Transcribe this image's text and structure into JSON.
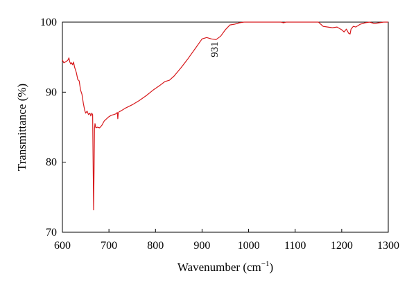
{
  "chart_data": {
    "type": "line",
    "xlabel": "Wavenumber (cm",
    "xlabel_sup": "−1",
    "xlabel_end": ")",
    "ylabel": "Transmittance (%)",
    "xlim": [
      600,
      1300
    ],
    "ylim": [
      70,
      100
    ],
    "x_ticks": [
      "600",
      "700",
      "800",
      "900",
      "1000",
      "1100",
      "1200",
      "1300"
    ],
    "y_ticks": [
      "70",
      "80",
      "90",
      "100"
    ],
    "grid": false,
    "legend": "none",
    "line_color": "#d7191c",
    "annotation": {
      "text": "931",
      "x": 931,
      "y": 96.1,
      "rotation": -90
    },
    "series": [
      {
        "x": [
          600,
          603,
          606,
          609,
          612,
          614,
          616,
          618,
          620,
          622,
          624,
          626,
          628,
          630,
          633,
          636,
          639,
          642,
          645,
          648,
          650,
          653,
          656,
          659,
          661,
          663,
          665,
          667,
          668,
          669,
          670,
          671,
          672,
          675,
          680,
          685,
          690,
          695,
          700,
          705,
          710,
          715,
          718,
          719,
          720,
          722,
          725,
          735,
          750,
          765,
          780,
          795,
          810,
          820,
          830,
          840,
          855,
          870,
          885,
          900,
          910,
          920,
          930,
          940,
          950,
          960,
          970,
          980,
          990,
          1000,
          1020,
          1050,
          1070,
          1075,
          1080,
          1100,
          1130,
          1150,
          1160,
          1170,
          1180,
          1190,
          1200,
          1205,
          1210,
          1215,
          1218,
          1220,
          1225,
          1230,
          1240,
          1250,
          1260,
          1270,
          1280,
          1290,
          1300
        ],
        "y": [
          94.6,
          94.2,
          94.3,
          94.4,
          94.6,
          94.9,
          94.3,
          94.0,
          94.2,
          93.9,
          94.3,
          93.6,
          93.2,
          92.8,
          91.8,
          91.6,
          90.3,
          89.7,
          88.4,
          87.4,
          87.0,
          87.3,
          86.8,
          87.0,
          86.6,
          87.0,
          86.8,
          73.2,
          79.0,
          84.8,
          85.5,
          85.2,
          84.9,
          85.0,
          84.9,
          85.3,
          85.9,
          86.2,
          86.5,
          86.7,
          86.8,
          86.9,
          87.1,
          86.2,
          87.0,
          87.2,
          87.3,
          87.7,
          88.2,
          88.8,
          89.5,
          90.3,
          91.0,
          91.5,
          91.7,
          92.3,
          93.5,
          94.8,
          96.2,
          97.6,
          97.8,
          97.6,
          97.5,
          98.0,
          98.9,
          99.6,
          99.7,
          99.9,
          100.0,
          100.0,
          100.0,
          100.0,
          100.0,
          99.9,
          100.0,
          100.0,
          100.0,
          100.0,
          99.4,
          99.3,
          99.2,
          99.3,
          98.9,
          98.6,
          99.0,
          98.4,
          98.3,
          99.0,
          99.4,
          99.3,
          99.7,
          99.9,
          100.0,
          99.8,
          99.9,
          100.0,
          100.0
        ]
      }
    ]
  }
}
